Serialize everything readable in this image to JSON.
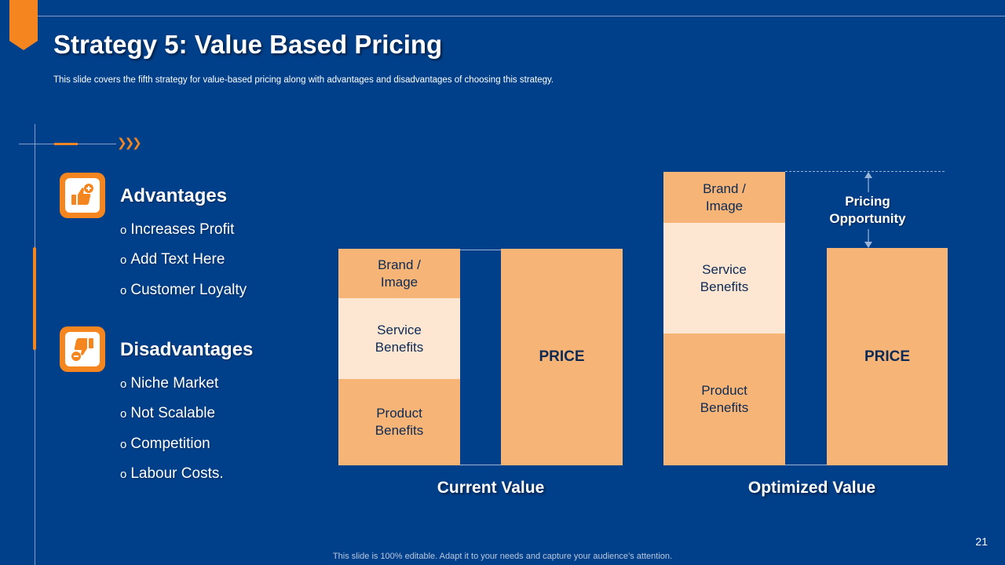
{
  "slide": {
    "title": "Strategy 5: Value Based Pricing",
    "subtitle": "This slide covers the fifth strategy for value-based pricing along with advantages and disadvantages of choosing this strategy.",
    "page_number": "21",
    "footer": "This slide is 100% editable. Adapt it to your needs and capture your audience’s attention."
  },
  "colors": {
    "background": "#00408B",
    "accent": "#F5861F",
    "segment_orange": "#F6B576",
    "segment_light": "#FDE7D2",
    "text_dark": "#0d2a55"
  },
  "advantages": {
    "heading": "Advantages",
    "icon": "thumbs-up-plus-icon",
    "items": [
      "Increases Profit",
      "Add Text Here",
      "Customer Loyalty"
    ]
  },
  "disadvantages": {
    "heading": "Disadvantages",
    "icon": "thumbs-down-minus-icon",
    "items": [
      "Niche Market",
      "Not Scalable",
      "Competition",
      "Labour Costs."
    ]
  },
  "bullet_marker": "o",
  "chart": {
    "current": {
      "label": "Current Value",
      "segments": {
        "brand": "Brand /\nImage",
        "service": "Service\nBenefits",
        "product": "Product\nBenefits"
      },
      "price": "PRICE"
    },
    "optimized": {
      "label": "Optimized Value",
      "segments": {
        "brand": "Brand /\nImage",
        "service": "Service\nBenefits",
        "product": "Product\nBenefits"
      },
      "price": "PRICE"
    },
    "pricing_opportunity": "Pricing\nOpportunity"
  }
}
